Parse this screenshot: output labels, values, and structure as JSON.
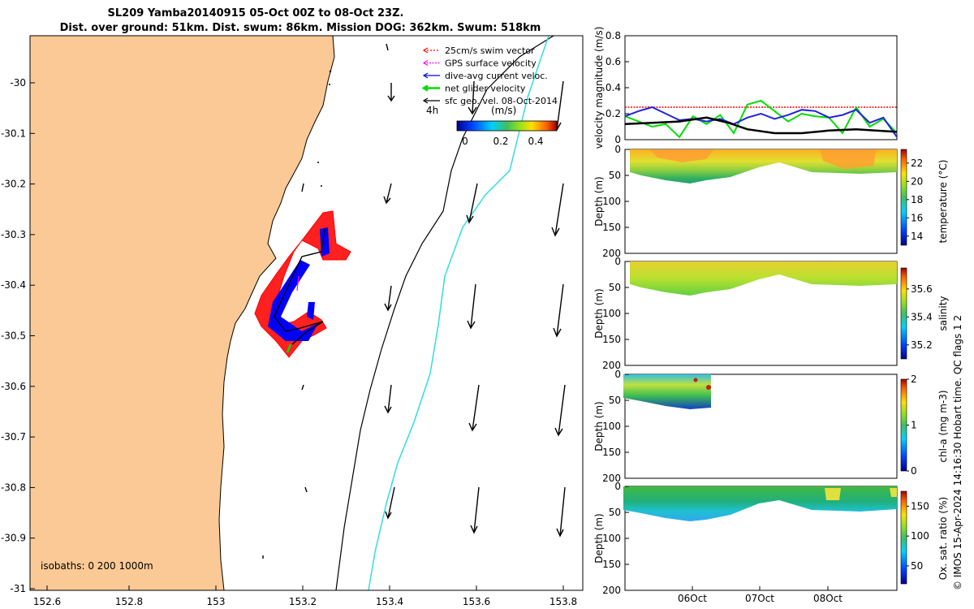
{
  "header": {
    "line1": "SL209 Yamba20140915 05-Oct 00Z to 08-Oct 23Z.",
    "line2": "Dist. over ground: 51km. Dist. swum: 86km. Mission DOG: 362km. Swum: 518km"
  },
  "map": {
    "x_ticks": [
      "152.6",
      "152.8",
      "153",
      "153.2",
      "153.4",
      "153.6",
      "153.8"
    ],
    "y_ticks": [
      "-30",
      "-30.1",
      "-30.2",
      "-30.3",
      "-30.4",
      "-30.5",
      "-30.6",
      "-30.7",
      "-30.8",
      "-30.9",
      "-31"
    ],
    "isobaths_label": "isobaths: 0   200  1000m",
    "legend": [
      {
        "label": "25cm/s swim vector",
        "color": "#ff0000"
      },
      {
        "label": "GPS surface velocity",
        "color": "#ff00ff"
      },
      {
        "label": "dive-avg current veloc.",
        "color": "#0000ff"
      },
      {
        "label": "net glider velocity",
        "color": "#00dd00"
      },
      {
        "label": "sfc geo. vel. 08-Oct-2014",
        "color": "#000000"
      }
    ],
    "interval_label": "4h",
    "colorbar_unit": "(m/s)",
    "colorbar_ticks": [
      "0",
      "0.2",
      "0.4"
    ],
    "land_color": "#fbc995"
  },
  "chart_data": [
    {
      "type": "line",
      "ylabel": "velocity magnitude (m/s)",
      "ylim": [
        0,
        0.8
      ],
      "y_ticks": [
        "0",
        "0.2",
        "0.4",
        "0.6",
        "0.8"
      ],
      "series": [
        {
          "color": "#ff0000",
          "style": "dotted",
          "x": [
            0,
            1
          ],
          "values": [
            0.25,
            0.25
          ]
        },
        {
          "color": "#00dd00",
          "x": [
            0,
            0.05,
            0.1,
            0.15,
            0.2,
            0.25,
            0.3,
            0.35,
            0.4,
            0.45,
            0.5,
            0.55,
            0.6,
            0.65,
            0.7,
            0.75,
            0.8,
            0.85,
            0.9,
            0.95,
            1.0
          ],
          "values": [
            0.18,
            0.14,
            0.1,
            0.12,
            0.02,
            0.18,
            0.12,
            0.19,
            0.05,
            0.27,
            0.3,
            0.22,
            0.14,
            0.2,
            0.18,
            0.17,
            0.05,
            0.25,
            0.1,
            0.16,
            0.05
          ]
        },
        {
          "color": "#2222dd",
          "x": [
            0,
            0.05,
            0.1,
            0.15,
            0.2,
            0.25,
            0.3,
            0.35,
            0.4,
            0.45,
            0.5,
            0.55,
            0.6,
            0.65,
            0.7,
            0.75,
            0.8,
            0.85,
            0.9,
            0.95,
            1.0
          ],
          "values": [
            0.18,
            0.22,
            0.25,
            0.2,
            0.15,
            0.16,
            0.14,
            0.16,
            0.12,
            0.17,
            0.2,
            0.16,
            0.19,
            0.23,
            0.22,
            0.17,
            0.19,
            0.23,
            0.13,
            0.17,
            0.02
          ]
        },
        {
          "color": "#000000",
          "x": [
            0,
            0.1,
            0.2,
            0.3,
            0.38,
            0.45,
            0.55,
            0.65,
            0.75,
            0.85,
            1.0
          ],
          "values": [
            0.12,
            0.13,
            0.14,
            0.17,
            0.13,
            0.08,
            0.05,
            0.05,
            0.07,
            0.08,
            0.06
          ]
        }
      ]
    },
    {
      "type": "heatmap",
      "ylabel": "Depth (m)",
      "cbar_label": "temperature (°C)",
      "ylim": [
        0,
        200
      ],
      "y_ticks": [
        "0",
        "50",
        "100",
        "150",
        "200"
      ],
      "cbar_ticks": [
        "14",
        "16",
        "18",
        "20",
        "22"
      ],
      "cbar_range": [
        13,
        23.5
      ]
    },
    {
      "type": "heatmap",
      "ylabel": "Depth (m)",
      "cbar_label": "salinity",
      "ylim": [
        0,
        200
      ],
      "y_ticks": [
        "0",
        "50",
        "100",
        "150",
        "200"
      ],
      "cbar_ticks": [
        "35.2",
        "35.4",
        "35.6"
      ],
      "cbar_range": [
        35.1,
        35.75
      ]
    },
    {
      "type": "heatmap",
      "ylabel": "Depth (m)",
      "cbar_label": "chl-a (mg m-3)",
      "ylim": [
        0,
        200
      ],
      "y_ticks": [
        "0",
        "50",
        "100",
        "150",
        "200"
      ],
      "cbar_ticks": [
        "0",
        "1",
        "2"
      ],
      "cbar_range": [
        0,
        2
      ]
    },
    {
      "type": "heatmap",
      "ylabel": "Depth (m)",
      "cbar_label": "Ox. sat. ratio (%)",
      "ylim": [
        0,
        200
      ],
      "y_ticks": [
        "0",
        "50",
        "100",
        "150",
        "200"
      ],
      "cbar_ticks": [
        "50",
        "100",
        "150"
      ],
      "cbar_range": [
        20,
        175
      ],
      "x_ticks": [
        "06Oct",
        "07Oct",
        "08Oct"
      ]
    }
  ],
  "credit": "© IMOS 15-Apr-2024 14:16:30 Hobart time. QC flags 1  2"
}
